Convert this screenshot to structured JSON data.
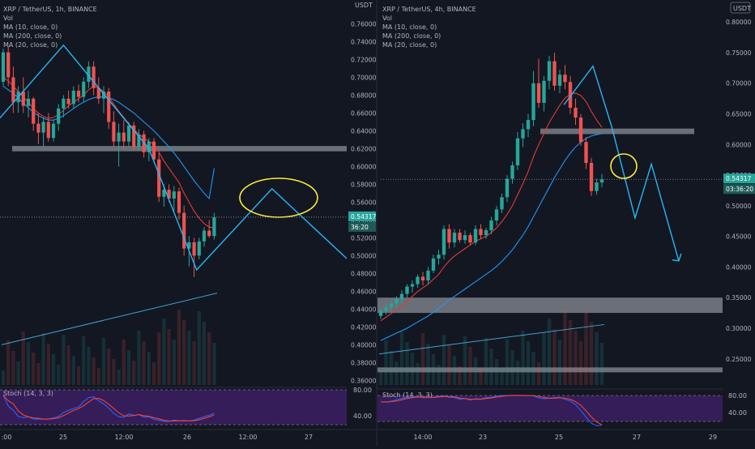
{
  "colors": {
    "background": "#131722",
    "divider": "#2a2e39",
    "up": "#26a69a",
    "down": "#ef5350",
    "ma_slow": "#2196f3",
    "ma_mid": "#e53935",
    "drawing": "#29b6f6",
    "zone": "#8a8d94",
    "highlight": "#ffeb3b",
    "stoch_fill": "#3c1f63",
    "stoch_k": "#2962ff",
    "stoch_d": "#f44336",
    "price_label_bg": "#26a69a",
    "text": "#b2b5be"
  },
  "left_panel": {
    "header": {
      "symbol": "XRP / TetherUS, 1h, BINANCE",
      "lines": [
        "Vol",
        "MA (10, close, 0)",
        "MA (200, close, 0)",
        "MA (20, close, 0)"
      ]
    },
    "axis_title": "USDT",
    "current_price": "0.54317",
    "countdown": "36:20",
    "stoch_title": "Stoch (14, 3, 3)",
    "stoch_levels": [
      "80.00",
      "40.00"
    ],
    "x_labels": [
      ":00",
      "25",
      "12:00",
      "26",
      "12:00",
      "27"
    ]
  },
  "right_panel": {
    "header": {
      "symbol": "XRP / TetherUS, 4h, BINANCE",
      "lines": [
        "Vol",
        "MA (10, close, 0)",
        "MA (200, close, 0)",
        "MA (20, close, 0)"
      ]
    },
    "axis_title": "USDT",
    "current_price": "0.54317",
    "countdown": "03:36:20",
    "stoch_title": "Stoch (14, 3, 3)",
    "stoch_levels": [
      "80.00",
      "40.00"
    ],
    "x_labels": [
      "14:00",
      "23",
      "25",
      "27",
      "29"
    ]
  },
  "chart_data": [
    {
      "type": "candlestick",
      "title": "XRP / TetherUS, 1h, BINANCE",
      "timeframe": "1h",
      "y_axis_ticks": [
        0.76,
        0.74,
        0.72,
        0.7,
        0.68,
        0.66,
        0.64,
        0.62,
        0.6,
        0.58,
        0.56,
        0.54,
        0.52,
        0.5,
        0.48,
        0.46,
        0.44,
        0.42,
        0.4,
        0.38,
        0.36
      ],
      "y_axis_tick_labels": [
        "0.76000",
        "0.74000",
        "0.72000",
        "0.70000",
        "0.68000",
        "0.66000",
        "0.64000",
        "0.62000",
        "0.60000",
        "0.58000",
        "0.56000",
        "0.54000",
        "0.52000",
        "0.50000",
        "0.48000",
        "0.46000",
        "0.44000",
        "0.42000",
        "0.40000",
        "0.38000",
        "0.36000"
      ],
      "ylim": [
        0.354,
        0.784
      ],
      "x_tick_labels": [
        ":00",
        "25",
        "12:00",
        "26",
        "12:00",
        "27"
      ],
      "current_price": 0.54317,
      "resistance_zone": [
        0.617,
        0.623
      ],
      "candles": [
        [
          0.695,
          0.732,
          0.69,
          0.728
        ],
        [
          0.728,
          0.735,
          0.69,
          0.7
        ],
        [
          0.7,
          0.712,
          0.66,
          0.672
        ],
        [
          0.672,
          0.69,
          0.66,
          0.684
        ],
        [
          0.684,
          0.7,
          0.66,
          0.668
        ],
        [
          0.668,
          0.685,
          0.655,
          0.676
        ],
        [
          0.676,
          0.678,
          0.64,
          0.648
        ],
        [
          0.648,
          0.66,
          0.625,
          0.638
        ],
        [
          0.638,
          0.655,
          0.622,
          0.65
        ],
        [
          0.65,
          0.66,
          0.628,
          0.632
        ],
        [
          0.632,
          0.652,
          0.628,
          0.648
        ],
        [
          0.648,
          0.67,
          0.64,
          0.665
        ],
        [
          0.665,
          0.68,
          0.655,
          0.676
        ],
        [
          0.676,
          0.685,
          0.665,
          0.67
        ],
        [
          0.67,
          0.69,
          0.665,
          0.685
        ],
        [
          0.685,
          0.692,
          0.672,
          0.678
        ],
        [
          0.678,
          0.7,
          0.672,
          0.695
        ],
        [
          0.695,
          0.718,
          0.688,
          0.712
        ],
        [
          0.712,
          0.718,
          0.68,
          0.688
        ],
        [
          0.688,
          0.7,
          0.67,
          0.676
        ],
        [
          0.676,
          0.69,
          0.66,
          0.684
        ],
        [
          0.684,
          0.688,
          0.642,
          0.65
        ],
        [
          0.65,
          0.662,
          0.622,
          0.628
        ],
        [
          0.628,
          0.648,
          0.6,
          0.638
        ],
        [
          0.638,
          0.652,
          0.62,
          0.628
        ],
        [
          0.628,
          0.65,
          0.622,
          0.646
        ],
        [
          0.646,
          0.65,
          0.618,
          0.622
        ],
        [
          0.622,
          0.642,
          0.618,
          0.636
        ],
        [
          0.636,
          0.64,
          0.61,
          0.616
        ],
        [
          0.616,
          0.632,
          0.606,
          0.628
        ],
        [
          0.628,
          0.632,
          0.604,
          0.608
        ],
        [
          0.608,
          0.615,
          0.56,
          0.566
        ],
        [
          0.566,
          0.58,
          0.555,
          0.574
        ],
        [
          0.574,
          0.58,
          0.56,
          0.564
        ],
        [
          0.564,
          0.578,
          0.55,
          0.572
        ],
        [
          0.572,
          0.576,
          0.54,
          0.548
        ],
        [
          0.548,
          0.556,
          0.5,
          0.508
        ],
        [
          0.508,
          0.522,
          0.488,
          0.515
        ],
        [
          0.515,
          0.52,
          0.476,
          0.5
        ],
        [
          0.5,
          0.52,
          0.496,
          0.516
        ],
        [
          0.516,
          0.532,
          0.51,
          0.528
        ],
        [
          0.528,
          0.54,
          0.52,
          0.522
        ],
        [
          0.522,
          0.548,
          0.518,
          0.543
        ]
      ],
      "ma_fast": [
        0.7,
        0.696,
        0.69,
        0.684,
        0.678,
        0.672,
        0.665,
        0.66,
        0.656,
        0.654,
        0.655,
        0.658,
        0.663,
        0.668,
        0.672,
        0.676,
        0.68,
        0.686,
        0.69,
        0.688,
        0.684,
        0.678,
        0.67,
        0.662,
        0.655,
        0.648,
        0.642,
        0.636,
        0.632,
        0.628,
        0.625,
        0.616,
        0.606,
        0.598,
        0.59,
        0.582,
        0.57,
        0.56,
        0.55,
        0.542,
        0.536,
        0.532,
        0.531
      ],
      "ma_slow": [
        0.69,
        0.686,
        0.682,
        0.677,
        0.671,
        0.666,
        0.661,
        0.657,
        0.654,
        0.652,
        0.652,
        0.654,
        0.657,
        0.661,
        0.665,
        0.669,
        0.672,
        0.675,
        0.677,
        0.678,
        0.678,
        0.677,
        0.675,
        0.672,
        0.668,
        0.664,
        0.66,
        0.655,
        0.65,
        0.645,
        0.64,
        0.634,
        0.628,
        0.622,
        0.615,
        0.608,
        0.6,
        0.592,
        0.584,
        0.577,
        0.57,
        0.564,
        0.598
      ],
      "zigzag": [
        [
          -6,
          0.62
        ],
        [
          12,
          0.736
        ],
        [
          29,
          0.62
        ],
        [
          38.5,
          0.484
        ],
        [
          53.5,
          0.575
        ],
        [
          75,
          0.462
        ]
      ],
      "volume_ma": [
        0.4,
        0.458
      ]
    },
    {
      "type": "candlestick",
      "title": "XRP / TetherUS, 4h, BINANCE",
      "timeframe": "4h",
      "y_axis_ticks": [
        0.8,
        0.75,
        0.7,
        0.65,
        0.6,
        0.55,
        0.5,
        0.45,
        0.4,
        0.35,
        0.3,
        0.25
      ],
      "y_axis_tick_labels": [
        "0.80000",
        "0.75000",
        "0.70000",
        "0.65000",
        "0.60000",
        "0.55000",
        "0.50000",
        "0.45000",
        "0.40000",
        "0.35000",
        "0.30000",
        "0.25000"
      ],
      "ylim": [
        0.206,
        0.832
      ],
      "x_tick_labels": [
        "14:00",
        "23",
        "25",
        "27",
        "29"
      ],
      "current_price": 0.54317,
      "resistance_zone": [
        0.617,
        0.626
      ],
      "support_zones": [
        [
          0.325,
          0.35
        ],
        [
          0.228,
          0.236
        ]
      ],
      "candles": [
        [
          0.32,
          0.332,
          0.315,
          0.328
        ],
        [
          0.328,
          0.34,
          0.322,
          0.334
        ],
        [
          0.334,
          0.345,
          0.328,
          0.34
        ],
        [
          0.34,
          0.352,
          0.332,
          0.348
        ],
        [
          0.348,
          0.362,
          0.34,
          0.356
        ],
        [
          0.356,
          0.372,
          0.35,
          0.368
        ],
        [
          0.368,
          0.378,
          0.358,
          0.372
        ],
        [
          0.372,
          0.388,
          0.366,
          0.384
        ],
        [
          0.384,
          0.392,
          0.37,
          0.378
        ],
        [
          0.378,
          0.4,
          0.372,
          0.394
        ],
        [
          0.394,
          0.42,
          0.39,
          0.414
        ],
        [
          0.414,
          0.428,
          0.404,
          0.42
        ],
        [
          0.42,
          0.468,
          0.412,
          0.462
        ],
        [
          0.462,
          0.47,
          0.43,
          0.44
        ],
        [
          0.44,
          0.462,
          0.432,
          0.456
        ],
        [
          0.456,
          0.462,
          0.44,
          0.444
        ],
        [
          0.444,
          0.46,
          0.438,
          0.452
        ],
        [
          0.452,
          0.456,
          0.436,
          0.44
        ],
        [
          0.44,
          0.468,
          0.436,
          0.462
        ],
        [
          0.462,
          0.47,
          0.446,
          0.452
        ],
        [
          0.452,
          0.464,
          0.446,
          0.46
        ],
        [
          0.46,
          0.482,
          0.454,
          0.476
        ],
        [
          0.476,
          0.5,
          0.468,
          0.494
        ],
        [
          0.494,
          0.52,
          0.488,
          0.514
        ],
        [
          0.514,
          0.55,
          0.506,
          0.544
        ],
        [
          0.544,
          0.572,
          0.536,
          0.566
        ],
        [
          0.566,
          0.62,
          0.558,
          0.61
        ],
        [
          0.61,
          0.635,
          0.596,
          0.625
        ],
        [
          0.625,
          0.65,
          0.612,
          0.64
        ],
        [
          0.64,
          0.72,
          0.63,
          0.7
        ],
        [
          0.7,
          0.74,
          0.66,
          0.668
        ],
        [
          0.668,
          0.712,
          0.654,
          0.704
        ],
        [
          0.704,
          0.745,
          0.69,
          0.736
        ],
        [
          0.736,
          0.75,
          0.688,
          0.696
        ],
        [
          0.696,
          0.722,
          0.684,
          0.714
        ],
        [
          0.714,
          0.73,
          0.69,
          0.702
        ],
        [
          0.702,
          0.712,
          0.65,
          0.66
        ],
        [
          0.66,
          0.675,
          0.632,
          0.644
        ],
        [
          0.644,
          0.65,
          0.598,
          0.604
        ],
        [
          0.604,
          0.612,
          0.56,
          0.57
        ],
        [
          0.57,
          0.578,
          0.516,
          0.524
        ],
        [
          0.524,
          0.544,
          0.518,
          0.538
        ],
        [
          0.538,
          0.552,
          0.53,
          0.543
        ]
      ],
      "ma_fast": [
        0.312,
        0.318,
        0.324,
        0.33,
        0.336,
        0.344,
        0.352,
        0.36,
        0.366,
        0.372,
        0.38,
        0.388,
        0.4,
        0.41,
        0.418,
        0.424,
        0.43,
        0.436,
        0.442,
        0.446,
        0.45,
        0.456,
        0.464,
        0.474,
        0.486,
        0.5,
        0.518,
        0.536,
        0.556,
        0.58,
        0.6,
        0.618,
        0.636,
        0.65,
        0.664,
        0.676,
        0.682,
        0.684,
        0.68,
        0.67,
        0.654,
        0.64,
        0.628
      ],
      "ma_slow": [
        0.28,
        0.284,
        0.288,
        0.292,
        0.296,
        0.3,
        0.305,
        0.31,
        0.315,
        0.32,
        0.326,
        0.332,
        0.339,
        0.346,
        0.352,
        0.358,
        0.364,
        0.37,
        0.376,
        0.382,
        0.388,
        0.394,
        0.401,
        0.409,
        0.418,
        0.428,
        0.44,
        0.452,
        0.466,
        0.482,
        0.498,
        0.514,
        0.53,
        0.546,
        0.56,
        0.574,
        0.586,
        0.596,
        0.604,
        0.61,
        0.614,
        0.616,
        0.618
      ],
      "zigzag": [
        [
          34.8,
          0.665
        ],
        [
          40.3,
          0.728
        ],
        [
          43.9,
          0.628
        ],
        [
          48.3,
          0.48
        ],
        [
          51.4,
          0.568
        ],
        [
          56.6,
          0.41
        ]
      ],
      "volume_ma": [
        0.258,
        0.306
      ]
    }
  ]
}
